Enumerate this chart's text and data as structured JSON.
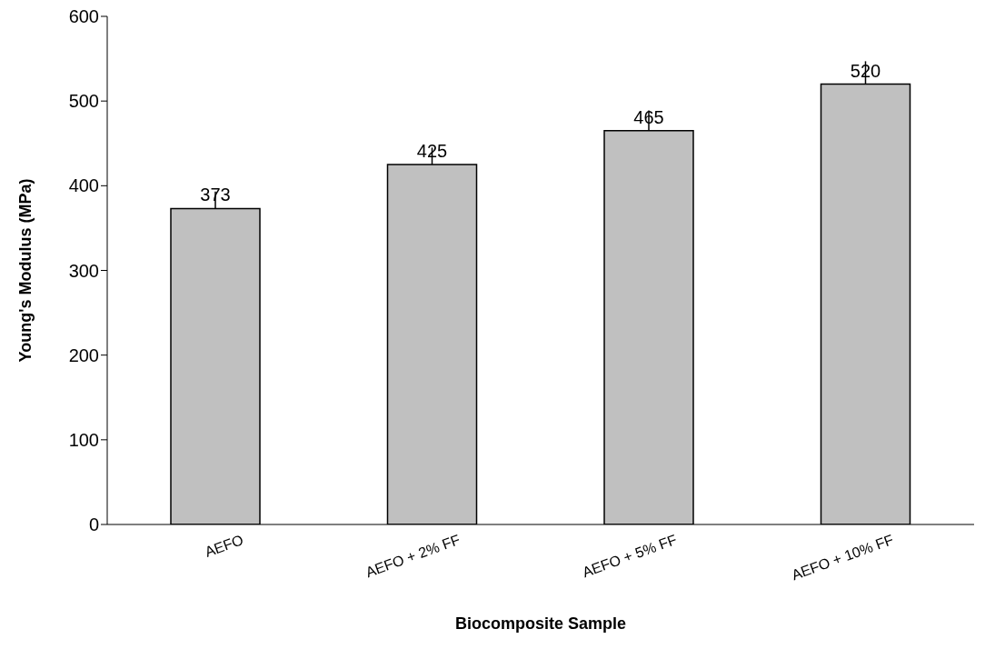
{
  "chart_data": {
    "type": "bar",
    "xlabel": "Biocomposite Sample",
    "ylabel": "Young's Modulus (MPa)",
    "categories": [
      "AEFO",
      "AEFO + 2% FF",
      "AEFO + 5% FF",
      "AEFO + 10% FF"
    ],
    "values": [
      373,
      425,
      465,
      520
    ],
    "errors": [
      [
        373,
        393
      ],
      [
        425,
        445
      ],
      [
        465,
        489
      ],
      [
        520,
        547
      ]
    ],
    "color": "#c0c0c0",
    "ylim": [
      0,
      600
    ],
    "yticks": [
      0,
      100,
      200,
      300,
      400,
      500,
      600
    ],
    "grid": false,
    "data_labels": true
  }
}
